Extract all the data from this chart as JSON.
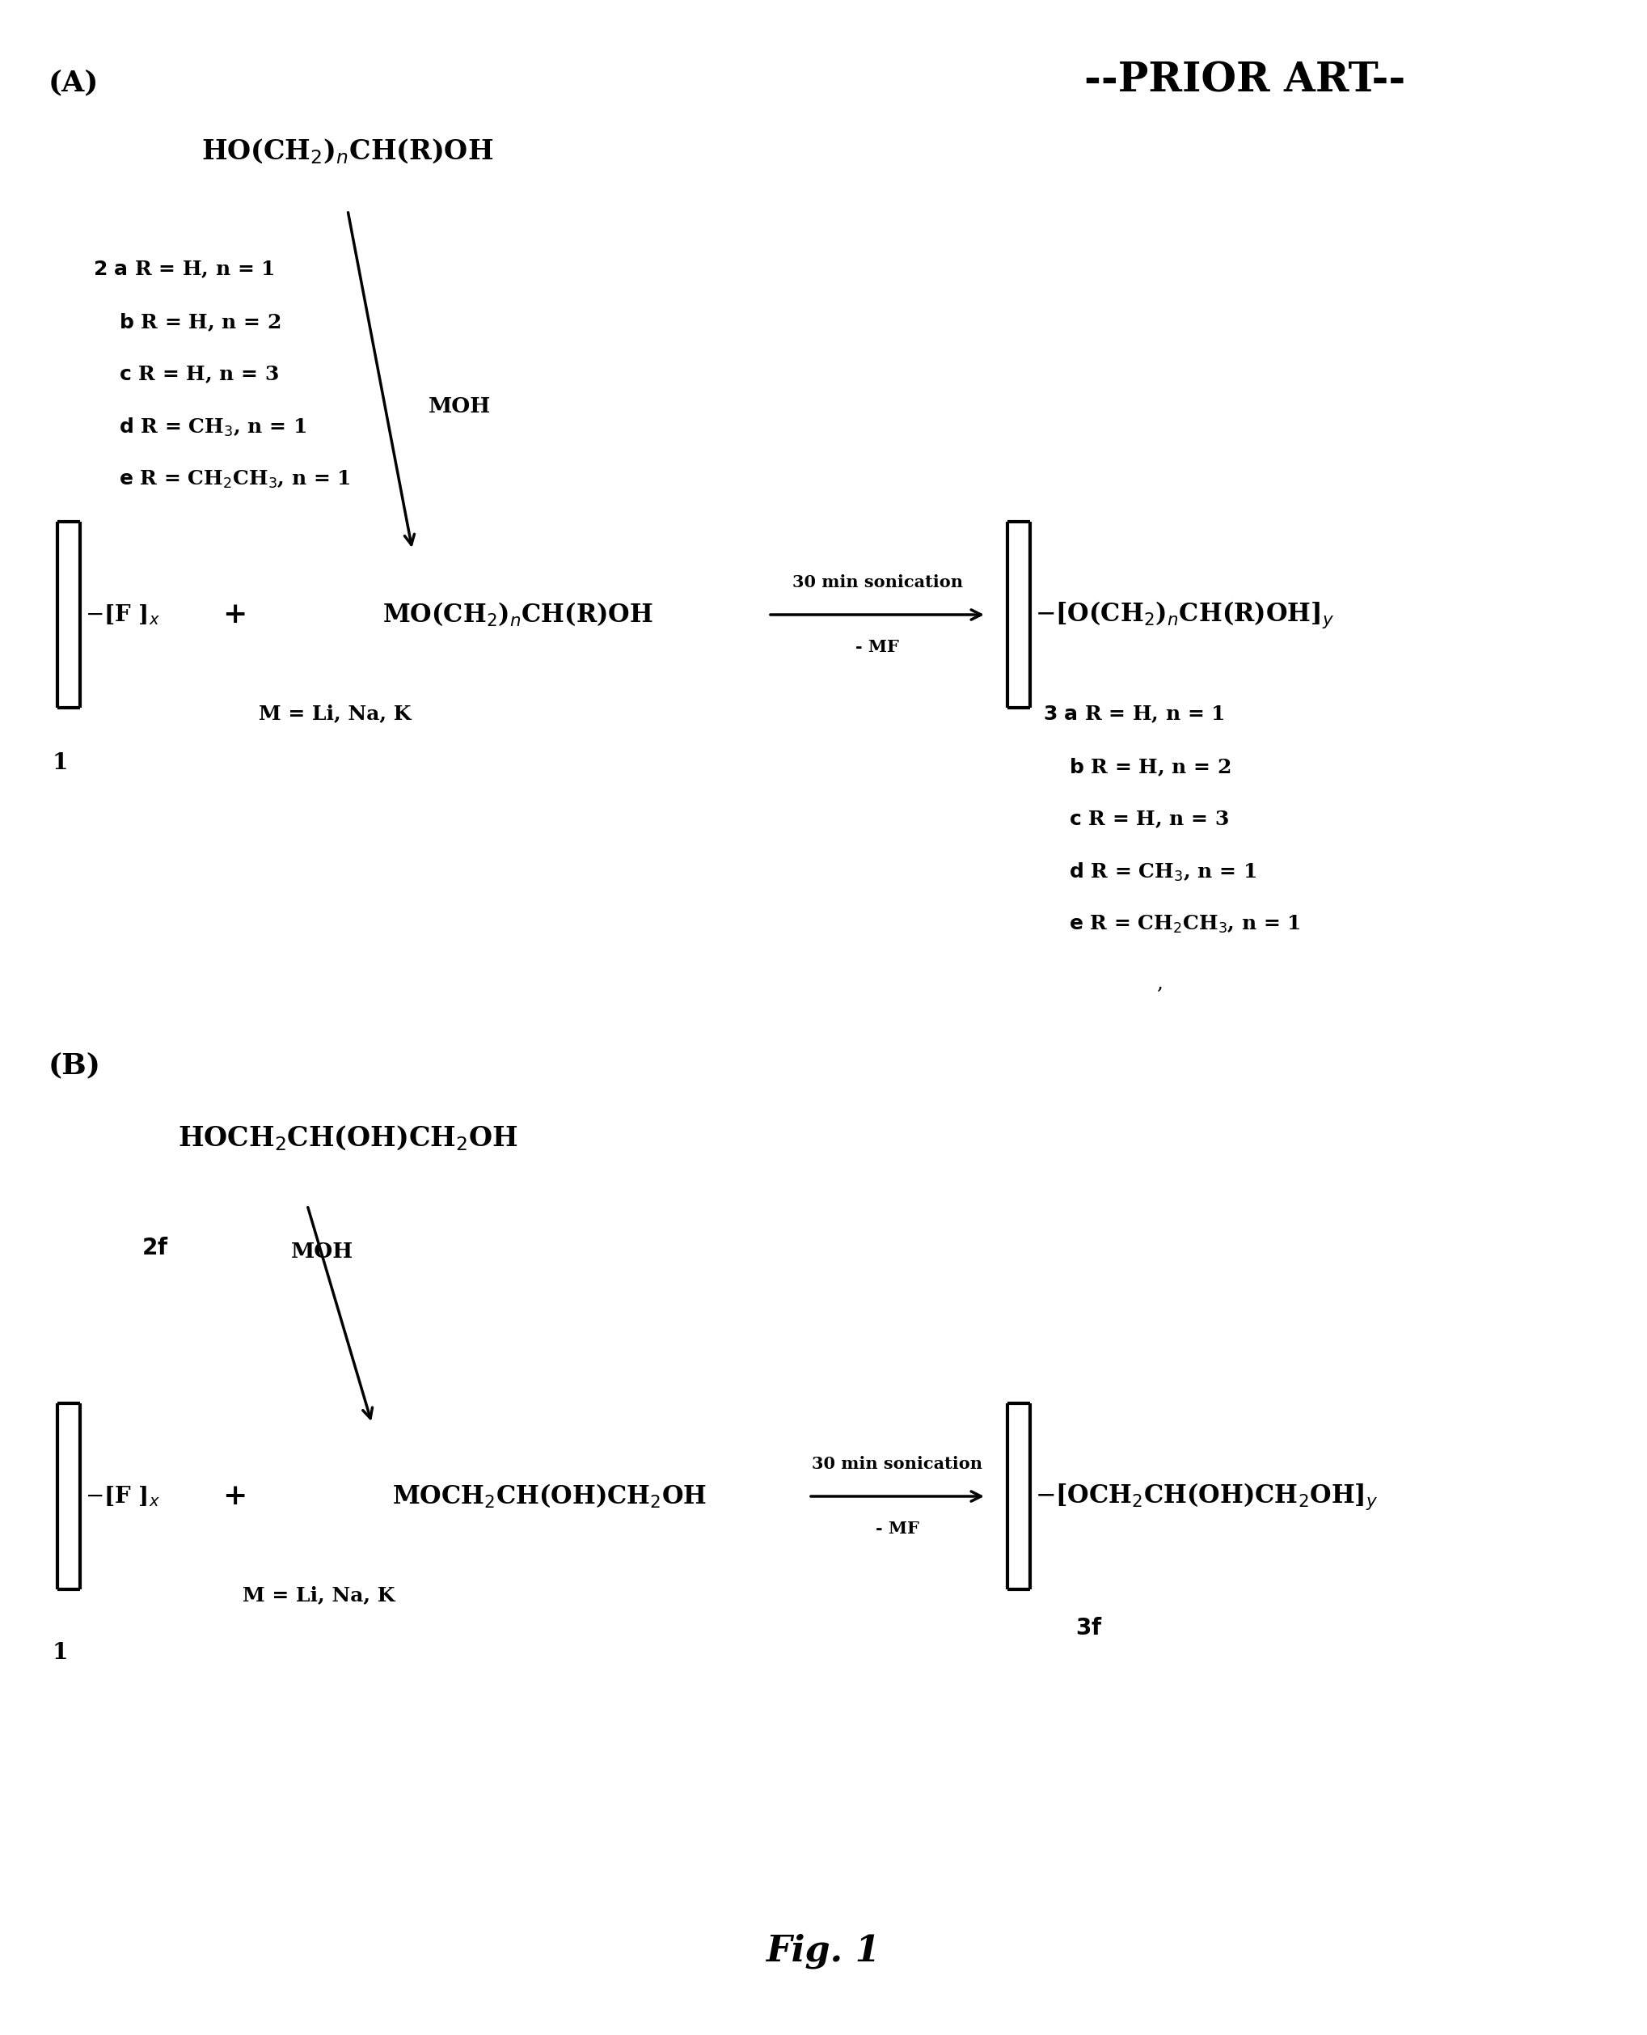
{
  "fig_width": 20.37,
  "fig_height": 25.16,
  "bg_color": "#ffffff",
  "title": "Fig. 1",
  "prior_art_text": "--PRIOR ART--",
  "label_A": "(A)",
  "label_B": "(B)"
}
